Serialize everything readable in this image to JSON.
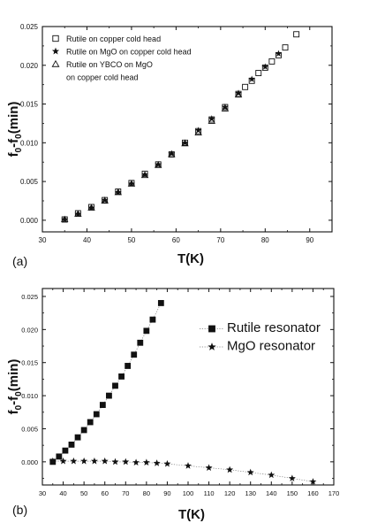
{
  "chart_data": [
    {
      "type": "scatter",
      "panel_label": "(a)",
      "xlabel": "T(K)",
      "ylabel_main": "f",
      "ylabel_sub1": "0",
      "ylabel_mid": "-f",
      "ylabel_sub2": "0",
      "ylabel_end": "(min)",
      "xlim": [
        30,
        95
      ],
      "ylim": [
        -0.0015,
        0.025
      ],
      "x_ticks": [
        "30",
        "40",
        "50",
        "60",
        "70",
        "80",
        "90"
      ],
      "y_ticks": [
        "0.000",
        "0.005",
        "0.010",
        "0.015",
        "0.020",
        "0.025"
      ],
      "legend_position": "top-left",
      "series": [
        {
          "name": "Rutile on copper cold head",
          "marker": "open-square",
          "x": [
            35,
            38,
            41,
            44,
            47,
            50,
            53,
            56,
            59,
            62,
            65,
            68,
            71,
            74,
            75.5,
            77,
            78.5,
            80,
            81.5,
            83,
            84.5,
            87
          ],
          "y": [
            0.0001,
            0.0009,
            0.0017,
            0.0026,
            0.0037,
            0.0048,
            0.006,
            0.0072,
            0.0085,
            0.01,
            0.0115,
            0.013,
            0.0146,
            0.0163,
            0.0172,
            0.018,
            0.019,
            0.0197,
            0.0205,
            0.0213,
            0.0223,
            0.024
          ]
        },
        {
          "name": "Rutile on MgO on copper cold  head",
          "marker": "star",
          "x": [
            35,
            38,
            41,
            44,
            47,
            50,
            53,
            56,
            59,
            62,
            65,
            68,
            71,
            74,
            77,
            80,
            83
          ],
          "y": [
            0.0001,
            0.0008,
            0.0016,
            0.0026,
            0.0036,
            0.0047,
            0.0059,
            0.0072,
            0.0086,
            0.01,
            0.0116,
            0.0131,
            0.0146,
            0.0164,
            0.0182,
            0.0198,
            0.0215
          ]
        },
        {
          "name": "Rutile on YBCO on MgO",
          "name_line2": "on copper cold head",
          "marker": "open-triangle",
          "x": [
            35,
            38,
            41,
            44,
            47,
            50,
            53,
            56,
            59,
            62,
            65,
            68,
            71,
            74
          ],
          "y": [
            0.0001,
            0.0008,
            0.0016,
            0.0025,
            0.0036,
            0.0047,
            0.0058,
            0.0071,
            0.0085,
            0.0099,
            0.0113,
            0.0128,
            0.0144,
            0.0162
          ]
        }
      ]
    },
    {
      "type": "scatter",
      "panel_label": "(b)",
      "xlabel": "T(K)",
      "ylabel_main": "f",
      "ylabel_sub1": "0",
      "ylabel_mid": "-f",
      "ylabel_sub2": "0",
      "ylabel_end": "(min)",
      "xlim": [
        30,
        170
      ],
      "ylim": [
        -0.0035,
        0.0262
      ],
      "x_ticks": [
        "30",
        "40",
        "50",
        "60",
        "70",
        "80",
        "90",
        "100",
        "110",
        "120",
        "130",
        "140",
        "150",
        "160",
        "170"
      ],
      "y_ticks": [
        "0.000",
        "0.005",
        "0.010",
        "0.015",
        "0.020",
        "0.025"
      ],
      "legend_position": "top-right",
      "series": [
        {
          "name": "Rutile resonator",
          "marker": "filled-square",
          "x": [
            35,
            38,
            41,
            44,
            47,
            50,
            53,
            56,
            59,
            62,
            65,
            68,
            71,
            74,
            77,
            80,
            83,
            87
          ],
          "y": [
            0.0,
            0.0008,
            0.0017,
            0.0026,
            0.0037,
            0.0048,
            0.006,
            0.0072,
            0.0086,
            0.01,
            0.0115,
            0.0129,
            0.0145,
            0.0162,
            0.018,
            0.0198,
            0.0215,
            0.024
          ]
        },
        {
          "name": "MgO resonator",
          "marker": "star",
          "x": [
            35,
            40,
            45,
            50,
            55,
            60,
            65,
            70,
            75,
            80,
            85,
            90,
            100,
            110,
            120,
            130,
            140,
            150,
            160
          ],
          "y": [
            0.0001,
            0.0001,
            0.0001,
            0.0001,
            0.0001,
            0.0001,
            0.0,
            0.0,
            -0.0001,
            -0.0001,
            -0.0002,
            -0.0003,
            -0.0006,
            -0.0009,
            -0.0012,
            -0.0016,
            -0.002,
            -0.0025,
            -0.003
          ]
        }
      ]
    }
  ]
}
